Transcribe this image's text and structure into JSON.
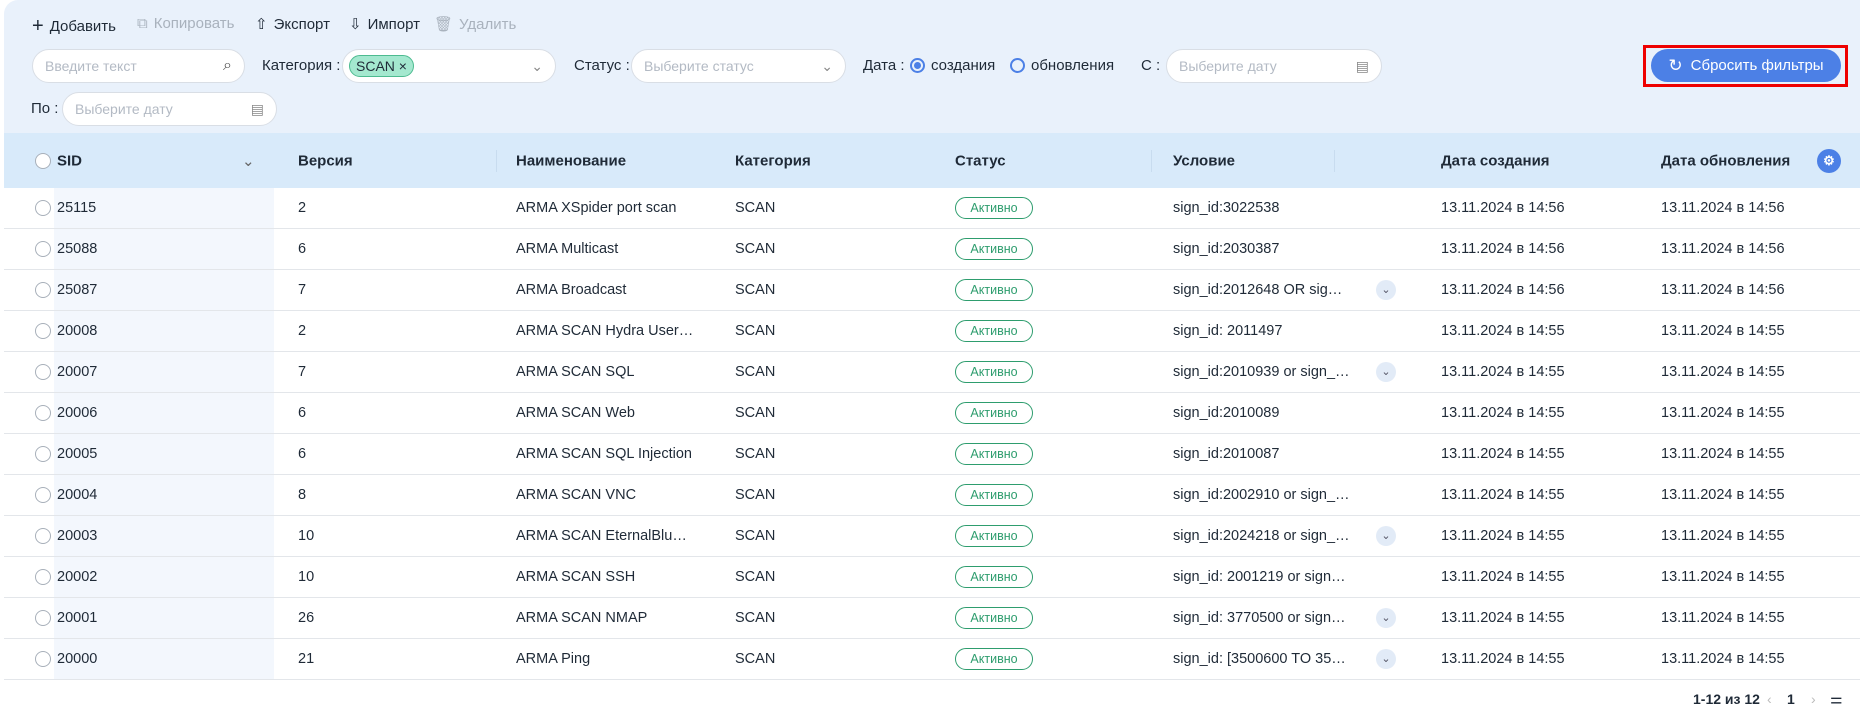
{
  "toolbar": {
    "add": "Добавить",
    "copy": "Копировать",
    "export": "Экспорт",
    "import": "Импорт",
    "delete": "Удалить"
  },
  "filters": {
    "search_placeholder": "Введите текст",
    "category_label": "Категория :",
    "category_chip": "SCAN",
    "status_label": "Статус :",
    "status_placeholder": "Выберите статус",
    "date_label": "Дата :",
    "date_options": [
      "создания",
      "обновления"
    ],
    "date_selected": "создания",
    "from_label": "С :",
    "from_placeholder": "Выберите дату",
    "to_label": "По :",
    "to_placeholder": "Выберите дату",
    "reset": "Сбросить фильтры"
  },
  "colors": {
    "accent": "#4c80e6",
    "active": "#2e9d6e",
    "highlight": "#ee0000"
  },
  "table": {
    "headers": [
      "SID",
      "Версия",
      "Наименование",
      "Категория",
      "Статус",
      "Условие",
      "Дата создания",
      "Дата обновления"
    ],
    "rows": [
      {
        "sid": "25115",
        "ver": "2",
        "name": "ARMA XSpider port scan",
        "cat": "SCAN",
        "status": "Активно",
        "cond": "sign_id:3022538",
        "exp": false,
        "created": "13.11.2024 в 14:56",
        "updated": "13.11.2024 в 14:56"
      },
      {
        "sid": "25088",
        "ver": "6",
        "name": "ARMA Multicast",
        "cat": "SCAN",
        "status": "Активно",
        "cond": "sign_id:2030387",
        "exp": false,
        "created": "13.11.2024 в 14:56",
        "updated": "13.11.2024 в 14:56"
      },
      {
        "sid": "25087",
        "ver": "7",
        "name": "ARMA Broadcast",
        "cat": "SCAN",
        "status": "Активно",
        "cond": "sign_id:2012648 OR sig…",
        "exp": true,
        "created": "13.11.2024 в 14:56",
        "updated": "13.11.2024 в 14:56"
      },
      {
        "sid": "20008",
        "ver": "2",
        "name": "ARMA SCAN Hydra User…",
        "cat": "SCAN",
        "status": "Активно",
        "cond": "sign_id: 2011497",
        "exp": false,
        "created": "13.11.2024 в 14:55",
        "updated": "13.11.2024 в 14:55"
      },
      {
        "sid": "20007",
        "ver": "7",
        "name": "ARMA SCAN SQL",
        "cat": "SCAN",
        "status": "Активно",
        "cond": "sign_id:2010939 or sign_…",
        "exp": true,
        "created": "13.11.2024 в 14:55",
        "updated": "13.11.2024 в 14:55"
      },
      {
        "sid": "20006",
        "ver": "6",
        "name": "ARMA SCAN Web",
        "cat": "SCAN",
        "status": "Активно",
        "cond": "sign_id:2010089",
        "exp": false,
        "created": "13.11.2024 в 14:55",
        "updated": "13.11.2024 в 14:55"
      },
      {
        "sid": "20005",
        "ver": "6",
        "name": "ARMA SCAN SQL Injection",
        "cat": "SCAN",
        "status": "Активно",
        "cond": "sign_id:2010087",
        "exp": false,
        "created": "13.11.2024 в 14:55",
        "updated": "13.11.2024 в 14:55"
      },
      {
        "sid": "20004",
        "ver": "8",
        "name": "ARMA SCAN VNC",
        "cat": "SCAN",
        "status": "Активно",
        "cond": "sign_id:2002910 or sign_…",
        "exp": false,
        "created": "13.11.2024 в 14:55",
        "updated": "13.11.2024 в 14:55"
      },
      {
        "sid": "20003",
        "ver": "10",
        "name": "ARMA SCAN EternalBlu…",
        "cat": "SCAN",
        "status": "Активно",
        "cond": "sign_id:2024218 or sign_…",
        "exp": true,
        "created": "13.11.2024 в 14:55",
        "updated": "13.11.2024 в 14:55"
      },
      {
        "sid": "20002",
        "ver": "10",
        "name": "ARMA SCAN SSH",
        "cat": "SCAN",
        "status": "Активно",
        "cond": "sign_id: 2001219 or sign…",
        "exp": false,
        "created": "13.11.2024 в 14:55",
        "updated": "13.11.2024 в 14:55"
      },
      {
        "sid": "20001",
        "ver": "26",
        "name": "ARMA SCAN NMAP",
        "cat": "SCAN",
        "status": "Активно",
        "cond": "sign_id: 3770500 or sign…",
        "exp": true,
        "created": "13.11.2024 в 14:55",
        "updated": "13.11.2024 в 14:55"
      },
      {
        "sid": "20000",
        "ver": "21",
        "name": "ARMA Ping",
        "cat": "SCAN",
        "status": "Активно",
        "cond": "sign_id: [3500600 TO 35…",
        "exp": true,
        "created": "13.11.2024 в 14:55",
        "updated": "13.11.2024 в 14:55"
      }
    ]
  },
  "pagination": {
    "range": "1-12 из 12",
    "page": "1"
  }
}
